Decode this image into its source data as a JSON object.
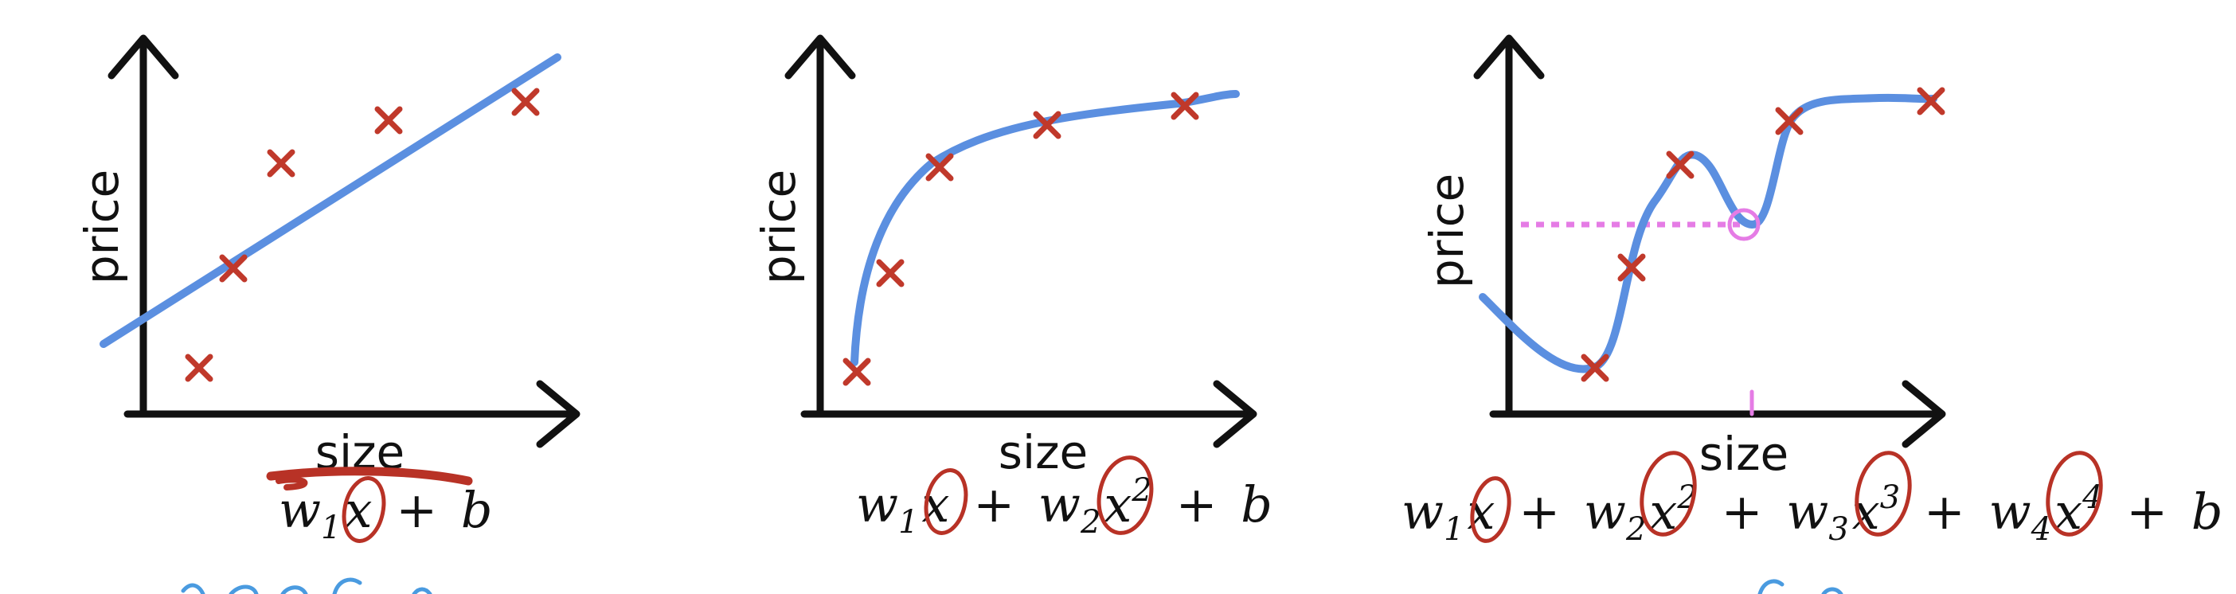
{
  "colors": {
    "axis": "#111111",
    "curve": "#5b8fe0",
    "point": "#c0392b",
    "annotation": "#b83226",
    "guide": "#e57ce5",
    "accent_blue": "#4a9be0"
  },
  "icons": {
    "point_marker": "cross-mark-icon",
    "circle_annotation": "hand-drawn-circle"
  },
  "panels": [
    {
      "id": "linear",
      "ylabel": "price",
      "xlabel": "size",
      "formula": {
        "terms": [
          {
            "w": "w",
            "sub": "1",
            "x": "x",
            "sup": ""
          }
        ],
        "plus": "+",
        "b": "b"
      }
    },
    {
      "id": "quadratic",
      "ylabel": "price",
      "xlabel": "size",
      "formula": {
        "terms": [
          {
            "w": "w",
            "sub": "1",
            "x": "x",
            "sup": ""
          },
          {
            "w": "w",
            "sub": "2",
            "x": "x",
            "sup": "2"
          }
        ],
        "plus": "+",
        "b": "b"
      }
    },
    {
      "id": "quartic",
      "ylabel": "price",
      "xlabel": "size",
      "formula": {
        "terms": [
          {
            "w": "w",
            "sub": "1",
            "x": "x",
            "sup": ""
          },
          {
            "w": "w",
            "sub": "2",
            "x": "x",
            "sup": "2"
          },
          {
            "w": "w",
            "sub": "3",
            "x": "x",
            "sup": "3"
          },
          {
            "w": "w",
            "sub": "4",
            "x": "x",
            "sup": "4"
          }
        ],
        "plus": "+",
        "b": "b"
      }
    }
  ]
}
